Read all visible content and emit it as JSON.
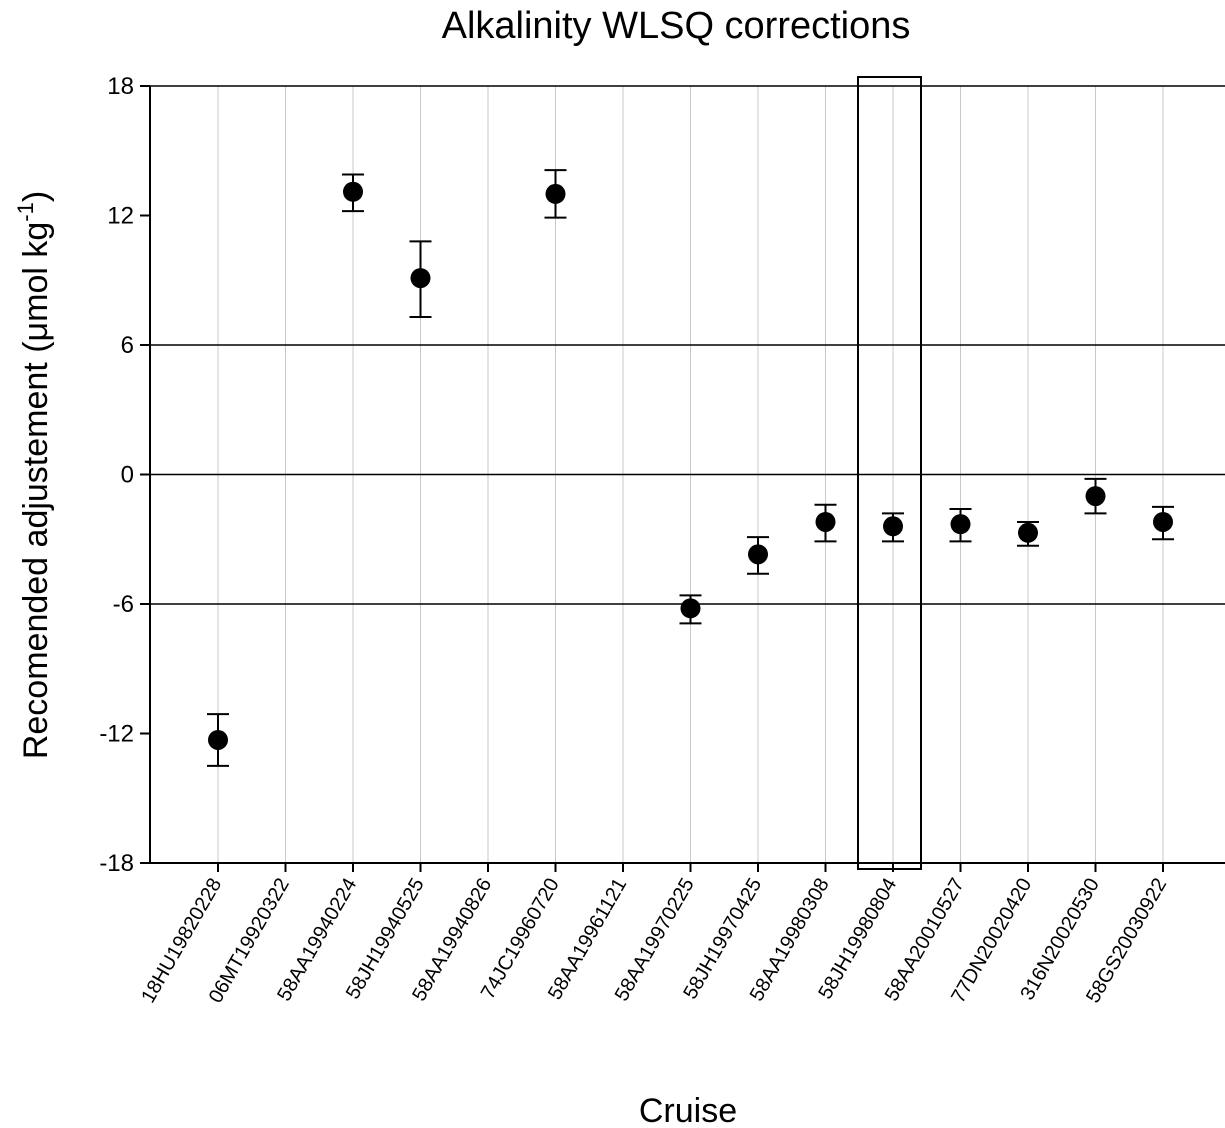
{
  "chart_data": {
    "type": "scatter",
    "title": "Alkalinity WLSQ corrections",
    "xlabel": "Cruise",
    "ylabel": {
      "main": "Recomended adjustement (",
      "mu": "μ",
      "unit": "mol kg",
      "sup": "-1",
      "close": ")"
    },
    "ylim": [
      -18,
      18
    ],
    "yticks": [
      18,
      12,
      6,
      0,
      -6,
      -12,
      -18
    ],
    "ytick_labels": [
      "18",
      "12",
      "6",
      "0",
      "-6",
      "-12",
      "-18"
    ],
    "hgrid_values": [
      18,
      6,
      0,
      -6
    ],
    "vgrid": true,
    "categories": [
      "18HU19820228",
      "06MT19920322",
      "58AA19940224",
      "58JH19940525",
      "58AA19940826",
      "74JC19960720",
      "58AA19961121",
      "58AA19970225",
      "58JH19970425",
      "58AA19980308",
      "58JH19980804",
      "58AA20010527",
      "77DN20020420",
      "316N20020530",
      "58GS20030922"
    ],
    "points": [
      {
        "category": "18HU19820228",
        "y": -12.3,
        "err_low": -13.5,
        "err_high": -11.1
      },
      {
        "category": "58AA19940224",
        "y": 13.1,
        "err_low": 12.2,
        "err_high": 13.9
      },
      {
        "category": "58JH19940525",
        "y": 9.1,
        "err_low": 7.3,
        "err_high": 10.8
      },
      {
        "category": "74JC19960720",
        "y": 13.0,
        "err_low": 11.9,
        "err_high": 14.1
      },
      {
        "category": "58AA19970225",
        "y": -6.2,
        "err_low": -6.9,
        "err_high": -5.6
      },
      {
        "category": "58JH19970425",
        "y": -3.7,
        "err_low": -4.6,
        "err_high": -2.9
      },
      {
        "category": "58AA19980308",
        "y": -2.2,
        "err_low": -3.1,
        "err_high": -1.4
      },
      {
        "category": "58JH19980804",
        "y": -2.4,
        "err_low": -3.1,
        "err_high": -1.8
      },
      {
        "category": "58AA20010527",
        "y": -2.3,
        "err_low": -3.1,
        "err_high": -1.6
      },
      {
        "category": "77DN20020420",
        "y": -2.7,
        "err_low": -3.3,
        "err_high": -2.2
      },
      {
        "category": "316N20020530",
        "y": -1.0,
        "err_low": -1.8,
        "err_high": -0.2
      },
      {
        "category": "58GS20030922",
        "y": -2.2,
        "err_low": -3.0,
        "err_high": -1.5
      }
    ],
    "highlight_category": "58JH19980804",
    "colors": {
      "marker": "#000000",
      "grid_horizontal": "#000000",
      "grid_vertical": "#c8c8c8",
      "axis": "#000000"
    }
  }
}
